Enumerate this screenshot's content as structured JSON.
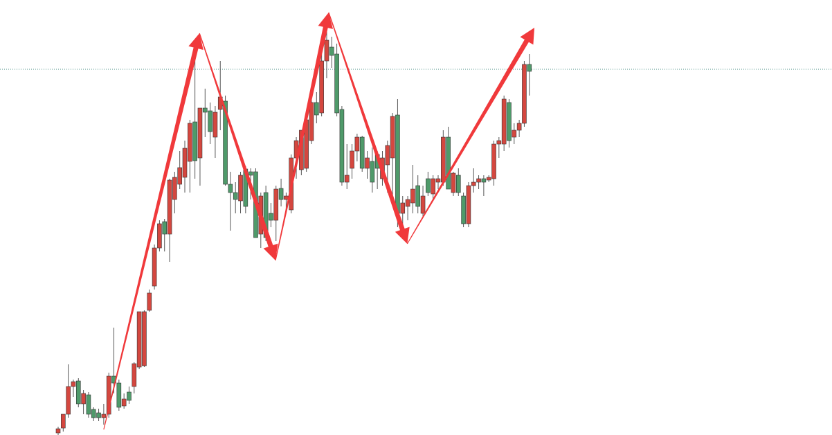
{
  "chart_data": {
    "type": "candlestick",
    "ylim": [
      0,
      628
    ],
    "up_color": "#d4473f",
    "down_color": "#4f9a6a",
    "wick_color": "#555555",
    "price_line": 528,
    "price_line_color": "#4a8f86",
    "open": [
      3,
      10,
      30,
      70,
      78,
      45,
      58,
      37,
      32,
      25,
      30,
      85,
      75,
      42,
      62,
      70,
      98,
      100,
      180,
      215,
      270,
      308,
      290,
      340,
      362,
      372,
      395,
      452,
      400,
      472,
      468,
      430,
      470,
      482,
      362,
      350,
      338,
      384,
      380,
      380,
      290,
      350,
      320,
      310,
      356,
      340,
      325,
      400,
      383,
      385,
      425,
      480,
      465,
      540,
      560,
      550,
      470,
      365,
      385,
      410,
      430,
      385,
      395,
      405,
      370,
      390,
      400,
      462,
      320,
      330,
      335,
      360,
      320,
      370,
      348,
      365,
      365,
      430,
      350,
      375,
      345,
      305,
      360,
      365,
      370,
      368,
      370,
      420,
      420,
      480,
      430,
      440,
      450,
      535
    ],
    "high": [
      12,
      30,
      102,
      80,
      82,
      65,
      62,
      40,
      38,
      45,
      90,
      155,
      80,
      60,
      70,
      105,
      178,
      180,
      210,
      275,
      310,
      312,
      370,
      380,
      410,
      425,
      455,
      565,
      470,
      500,
      480,
      475,
      540,
      490,
      380,
      365,
      380,
      388,
      385,
      385,
      350,
      360,
      335,
      360,
      370,
      350,
      405,
      430,
      440,
      460,
      490,
      495,
      550,
      590,
      575,
      565,
      475,
      420,
      420,
      435,
      432,
      410,
      415,
      410,
      410,
      425,
      465,
      485,
      345,
      345,
      390,
      375,
      360,
      380,
      375,
      375,
      440,
      445,
      380,
      385,
      350,
      365,
      385,
      375,
      375,
      375,
      425,
      430,
      490,
      485,
      450,
      455,
      540,
      550
    ],
    "low": [
      0,
      5,
      25,
      55,
      40,
      30,
      25,
      20,
      20,
      15,
      25,
      60,
      35,
      38,
      45,
      60,
      95,
      98,
      178,
      210,
      265,
      265,
      250,
      320,
      355,
      350,
      350,
      370,
      360,
      430,
      420,
      400,
      440,
      360,
      295,
      320,
      320,
      320,
      340,
      290,
      270,
      280,
      300,
      280,
      330,
      320,
      320,
      370,
      375,
      380,
      420,
      450,
      460,
      515,
      530,
      460,
      360,
      355,
      370,
      395,
      380,
      370,
      350,
      355,
      360,
      350,
      345,
      300,
      290,
      310,
      320,
      320,
      315,
      345,
      340,
      355,
      360,
      355,
      345,
      345,
      300,
      300,
      350,
      355,
      345,
      365,
      360,
      400,
      410,
      415,
      420,
      430,
      445,
      490
    ],
    "close": [
      9,
      30,
      70,
      77,
      45,
      60,
      30,
      25,
      25,
      30,
      85,
      75,
      40,
      52,
      50,
      103,
      178,
      178,
      205,
      270,
      305,
      290,
      368,
      372,
      386,
      414,
      450,
      396,
      472,
      466,
      438,
      466,
      488,
      362,
      350,
      340,
      375,
      330,
      375,
      285,
      345,
      285,
      310,
      355,
      340,
      345,
      400,
      425,
      440,
      455,
      480,
      462,
      540,
      570,
      548,
      465,
      365,
      375,
      410,
      430,
      385,
      400,
      365,
      385,
      400,
      418,
      460,
      320,
      335,
      340,
      355,
      330,
      345,
      350,
      370,
      370,
      430,
      355,
      378,
      350,
      305,
      360,
      365,
      370,
      365,
      372,
      420,
      425,
      485,
      425,
      440,
      450,
      535,
      525
    ],
    "zigzag": {
      "color": "#f0393b",
      "x": [
        9.0,
        27.9,
        42.9,
        53.4,
        68.9,
        94.0
      ],
      "values": [
        8,
        580,
        252,
        610,
        276,
        588
      ]
    }
  }
}
